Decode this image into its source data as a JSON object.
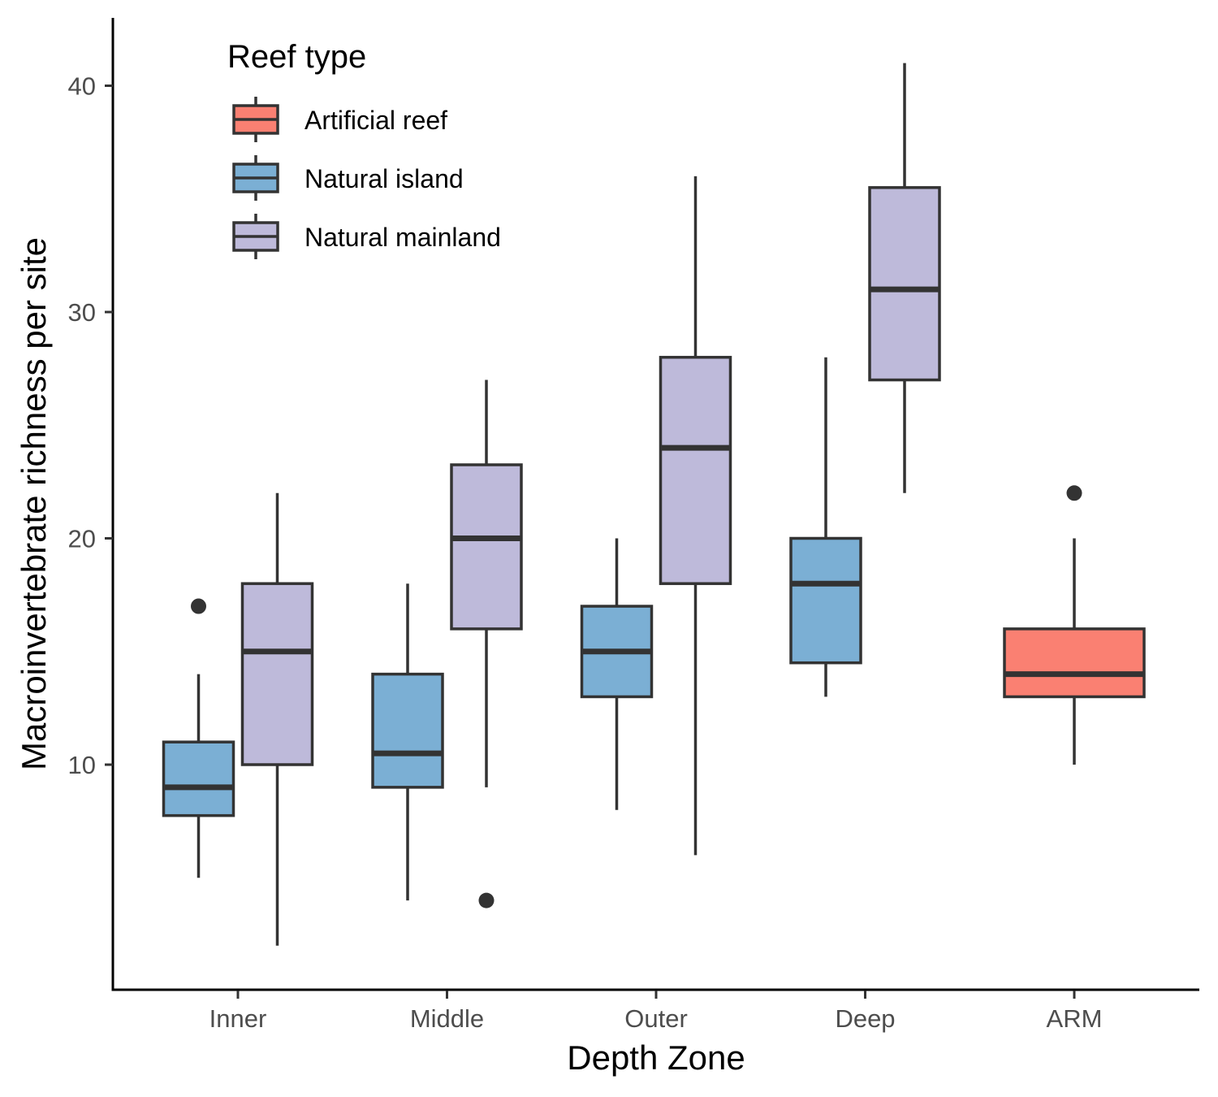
{
  "chart_data": {
    "type": "boxplot",
    "xlabel": "Depth Zone",
    "ylabel": "Macroinvertebrate richness per site",
    "categories": [
      "Inner",
      "Middle",
      "Outer",
      "Deep",
      "ARM"
    ],
    "y_ticks": [
      10,
      20,
      30,
      40
    ],
    "ylim": [
      1,
      43.5
    ],
    "grid": false,
    "legend": {
      "title": "Reef type",
      "placement": "top-left",
      "entries": [
        {
          "name": "Artificial reef",
          "color": "#FA8072"
        },
        {
          "name": "Natural island",
          "color": "#7BAFD4"
        },
        {
          "name": "Natural mainland",
          "color": "#BEBADA"
        }
      ]
    },
    "series": [
      {
        "name": "Artificial reef",
        "color": "#FA8072",
        "boxes": [
          {
            "category": "ARM",
            "whisker_low": 10,
            "q1": 13,
            "median": 14,
            "q3": 16,
            "whisker_high": 20,
            "outliers": [
              22
            ]
          }
        ]
      },
      {
        "name": "Natural island",
        "color": "#7BAFD4",
        "boxes": [
          {
            "category": "Inner",
            "whisker_low": 5,
            "q1": 7.75,
            "median": 9,
            "q3": 11,
            "whisker_high": 14,
            "outliers": [
              17
            ]
          },
          {
            "category": "Middle",
            "whisker_low": 4,
            "q1": 9,
            "median": 10.5,
            "q3": 14,
            "whisker_high": 18,
            "outliers": []
          },
          {
            "category": "Outer",
            "whisker_low": 8,
            "q1": 13,
            "median": 15,
            "q3": 17,
            "whisker_high": 20,
            "outliers": []
          },
          {
            "category": "Deep",
            "whisker_low": 13,
            "q1": 14.5,
            "median": 18,
            "q3": 20,
            "whisker_high": 28,
            "outliers": []
          }
        ]
      },
      {
        "name": "Natural mainland",
        "color": "#BEBADA",
        "boxes": [
          {
            "category": "Inner",
            "whisker_low": 2,
            "q1": 10,
            "median": 15,
            "q3": 18,
            "whisker_high": 22,
            "outliers": []
          },
          {
            "category": "Middle",
            "whisker_low": 9,
            "q1": 16,
            "median": 20,
            "q3": 23.25,
            "whisker_high": 27,
            "outliers": [
              4
            ]
          },
          {
            "category": "Outer",
            "whisker_low": 6,
            "q1": 18,
            "median": 24,
            "q3": 28,
            "whisker_high": 36,
            "outliers": []
          },
          {
            "category": "Deep",
            "whisker_low": 22,
            "q1": 27,
            "median": 31,
            "q3": 35.5,
            "whisker_high": 41,
            "outliers": []
          }
        ]
      }
    ]
  }
}
